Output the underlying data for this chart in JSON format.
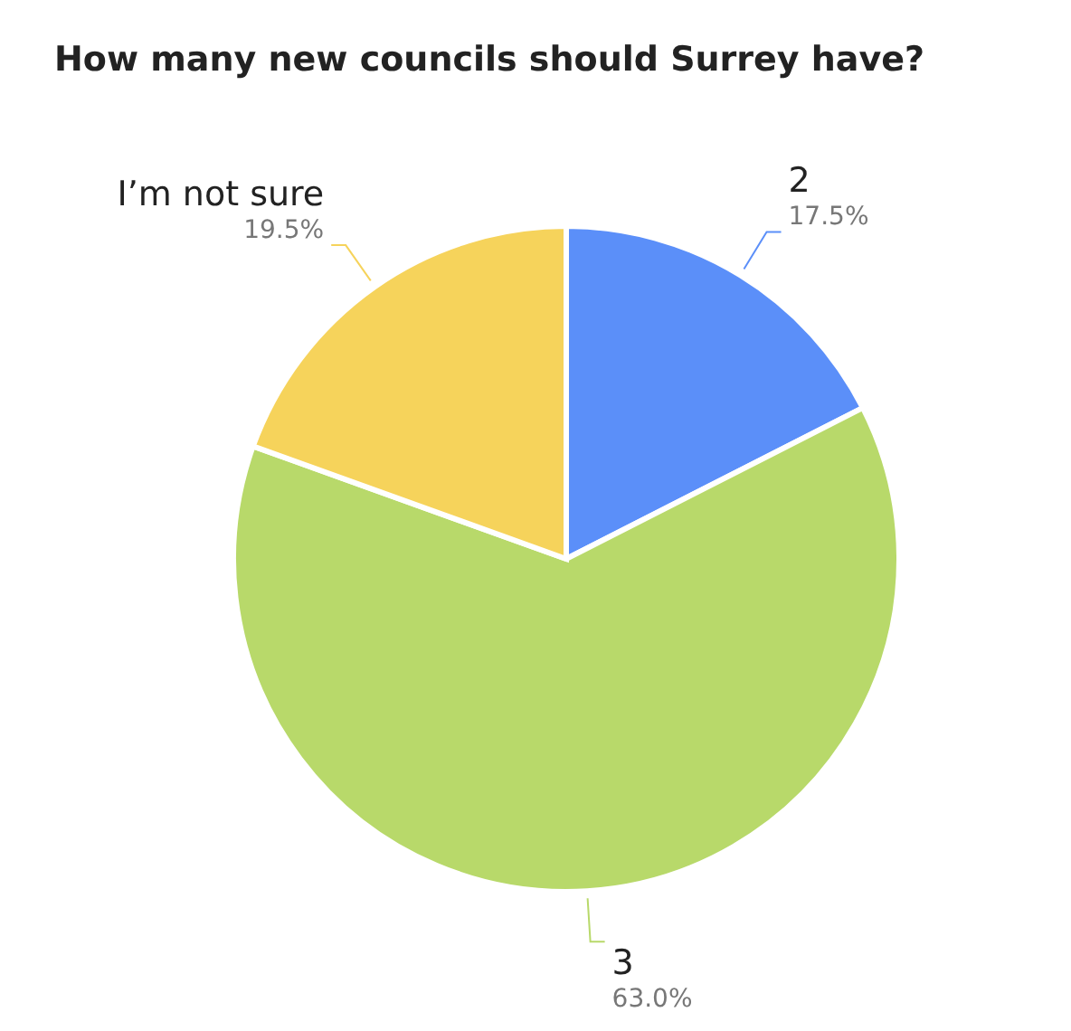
{
  "chart_data": {
    "type": "pie",
    "title": "How many new councils should Surrey have?",
    "categories": [
      "2",
      "3",
      "I’m not sure"
    ],
    "values": [
      17.5,
      63.0,
      19.5
    ],
    "value_labels": [
      "17.5%",
      "63.0%",
      "19.5%"
    ],
    "colors": [
      "#5b8ff9",
      "#b8d96a",
      "#f6d35b"
    ],
    "legend": false
  }
}
